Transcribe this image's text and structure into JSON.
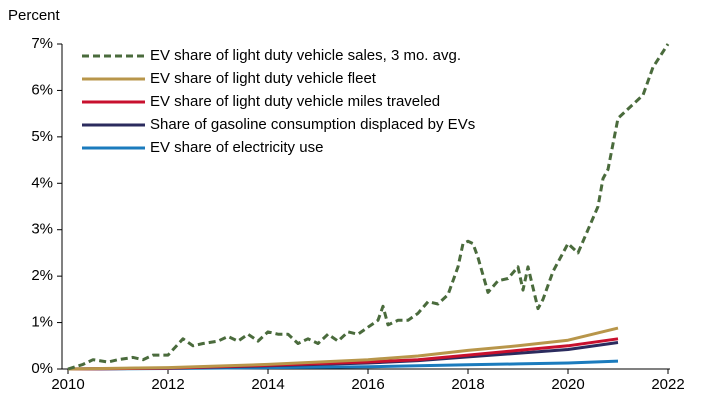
{
  "chart_data": {
    "type": "line",
    "y_label": "Percent",
    "xlim": [
      2010,
      2022
    ],
    "xticks": [
      2010,
      2012,
      2014,
      2016,
      2018,
      2020,
      2022
    ],
    "ylim": [
      0,
      7
    ],
    "yticks": [
      {
        "value": 0,
        "label": "0%"
      },
      {
        "value": 1,
        "label": "1%"
      },
      {
        "value": 2,
        "label": "2%"
      },
      {
        "value": 3,
        "label": "3%"
      },
      {
        "value": 4,
        "label": "4%"
      },
      {
        "value": 5,
        "label": "5%"
      },
      {
        "value": 6,
        "label": "6%"
      },
      {
        "value": 7,
        "label": "7%"
      }
    ],
    "grid": false,
    "legend": "upper left",
    "series": [
      {
        "name": "EV share of light duty vehicle sales, 3 mo. avg.",
        "color": "#4a6b3c",
        "dashed": true,
        "x": [
          2010.0,
          2010.3,
          2010.5,
          2010.8,
          2011.0,
          2011.3,
          2011.5,
          2011.7,
          2012.0,
          2012.3,
          2012.5,
          2012.7,
          2013.0,
          2013.2,
          2013.4,
          2013.6,
          2013.8,
          2014.0,
          2014.2,
          2014.4,
          2014.6,
          2014.8,
          2015.0,
          2015.2,
          2015.4,
          2015.6,
          2015.8,
          2016.0,
          2016.2,
          2016.3,
          2016.4,
          2016.6,
          2016.8,
          2017.0,
          2017.2,
          2017.4,
          2017.6,
          2017.8,
          2017.9,
          2018.0,
          2018.1,
          2018.2,
          2018.4,
          2018.6,
          2018.8,
          2019.0,
          2019.1,
          2019.2,
          2019.4,
          2019.5,
          2019.7,
          2019.9,
          2020.0,
          2020.2,
          2020.4,
          2020.6,
          2020.7,
          2020.8,
          2021.0,
          2021.2,
          2021.5,
          2021.7,
          2022.0
        ],
        "values": [
          0.0,
          0.1,
          0.2,
          0.15,
          0.2,
          0.25,
          0.2,
          0.3,
          0.3,
          0.65,
          0.5,
          0.55,
          0.6,
          0.7,
          0.6,
          0.75,
          0.6,
          0.8,
          0.75,
          0.75,
          0.55,
          0.65,
          0.55,
          0.75,
          0.6,
          0.8,
          0.75,
          0.9,
          1.05,
          1.35,
          0.95,
          1.05,
          1.05,
          1.2,
          1.45,
          1.4,
          1.6,
          2.2,
          2.7,
          2.75,
          2.7,
          2.4,
          1.65,
          1.9,
          1.95,
          2.2,
          1.7,
          2.2,
          1.3,
          1.5,
          2.1,
          2.5,
          2.7,
          2.5,
          3.0,
          3.5,
          4.1,
          4.3,
          5.4,
          5.6,
          5.9,
          6.5,
          7.0
        ]
      },
      {
        "name": "EV share of light duty vehicle fleet",
        "color": "#b8964a",
        "dashed": false,
        "x": [
          2010,
          2012,
          2014,
          2016,
          2017,
          2018,
          2019,
          2020,
          2021
        ],
        "values": [
          0,
          0.03,
          0.1,
          0.2,
          0.28,
          0.4,
          0.5,
          0.62,
          0.88
        ]
      },
      {
        "name": "EV share of light duty vehicle miles traveled",
        "color": "#c8102e",
        "dashed": false,
        "x": [
          2010,
          2012,
          2014,
          2016,
          2017,
          2018,
          2019,
          2020,
          2021
        ],
        "values": [
          0,
          0.02,
          0.08,
          0.15,
          0.2,
          0.3,
          0.4,
          0.5,
          0.65
        ]
      },
      {
        "name": "Share of gasoline consumption displaced by EVs",
        "color": "#2b2b5e",
        "dashed": false,
        "x": [
          2010,
          2012,
          2014,
          2016,
          2017,
          2018,
          2019,
          2020,
          2021
        ],
        "values": [
          0,
          0.02,
          0.07,
          0.13,
          0.18,
          0.26,
          0.34,
          0.42,
          0.57
        ]
      },
      {
        "name": "EV share of electricity use",
        "color": "#1b7bbd",
        "dashed": false,
        "x": [
          2010,
          2012,
          2014,
          2016,
          2017,
          2018,
          2019,
          2020,
          2021
        ],
        "values": [
          0,
          0.01,
          0.03,
          0.05,
          0.07,
          0.09,
          0.11,
          0.13,
          0.17
        ]
      }
    ]
  }
}
